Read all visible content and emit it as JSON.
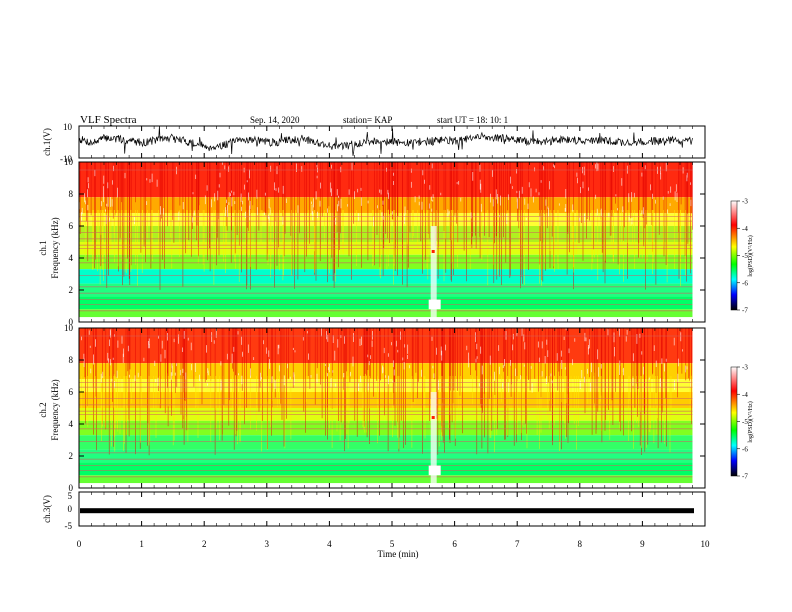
{
  "header": {
    "title": "VLF Spectra",
    "date": "Sep. 14, 2020",
    "station": "station= KAP",
    "start": "start  UT =   18: 10: 1"
  },
  "chart_data": [
    {
      "type": "line",
      "name": "ch1-waveform",
      "ylabel": "ch.1(V)",
      "ylim": [
        -10,
        10
      ],
      "yticks": [
        "10",
        "-10"
      ],
      "xlim": [
        0,
        10
      ],
      "samples": [
        0.32,
        -0.1,
        0.45,
        0.3,
        0.1,
        -0.05,
        0.25,
        0.4,
        0.15,
        -0.2,
        -0.55,
        -0.35,
        0.05,
        0.3,
        0.1,
        -0.1,
        0.2,
        0.38,
        0.05,
        -0.35,
        -0.5,
        -0.25,
        0.0,
        0.15,
        0.05,
        -0.15,
        0.0,
        0.1,
        0.22,
        0.1,
        0.35,
        0.6,
        0.45,
        0.28,
        0.1,
        0.0,
        0.05,
        0.3,
        0.2,
        0.1,
        0.15,
        0.05,
        -0.1,
        0.0,
        0.1,
        0.2,
        0.15,
        0.0
      ]
    },
    {
      "type": "heatmap",
      "name": "ch1-spectrogram",
      "ylabel": "ch.1\nFrequency  (kHz)",
      "ylim": [
        0,
        10
      ],
      "yticks": [
        "0",
        "2",
        "4",
        "6",
        "8",
        "10"
      ],
      "xlim": [
        0,
        10
      ],
      "colorbar": {
        "label": "log(PSD)(V²/Hz)",
        "range": [
          -7,
          -3
        ],
        "ticks": [
          "-3",
          "-4",
          "-5",
          "-6",
          "-7"
        ],
        "colors": [
          "#ffffff",
          "#ff0000",
          "#ffff00",
          "#00ff00",
          "#00ffff",
          "#0000ff",
          "#000000"
        ]
      }
    },
    {
      "type": "heatmap",
      "name": "ch2-spectrogram",
      "ylabel": "ch.2\nFrequency  (kHz)",
      "ylim": [
        0,
        10
      ],
      "yticks": [
        "0",
        "2",
        "4",
        "6",
        "8",
        "10"
      ],
      "xlim": [
        0,
        10
      ],
      "colorbar": {
        "label": "log(PSD)(V²/Hz)",
        "range": [
          -7,
          -3
        ],
        "ticks": [
          "-3",
          "-4",
          "-5",
          "-6",
          "-7"
        ],
        "colors": [
          "#ffffff",
          "#ff0000",
          "#ffff00",
          "#00ff00",
          "#00ffff",
          "#0000ff",
          "#000000"
        ]
      }
    },
    {
      "type": "line",
      "name": "ch3-signal",
      "ylabel": "ch.3(V)",
      "ylim": [
        -5,
        5
      ],
      "yticks": [
        "5",
        "0",
        "-5"
      ],
      "xlim": [
        0,
        10
      ],
      "level": -0.5,
      "xlabel": "Time  (min)",
      "xticks": [
        "0",
        "1",
        "2",
        "3",
        "4",
        "5",
        "6",
        "7",
        "8",
        "9",
        "10"
      ]
    }
  ]
}
